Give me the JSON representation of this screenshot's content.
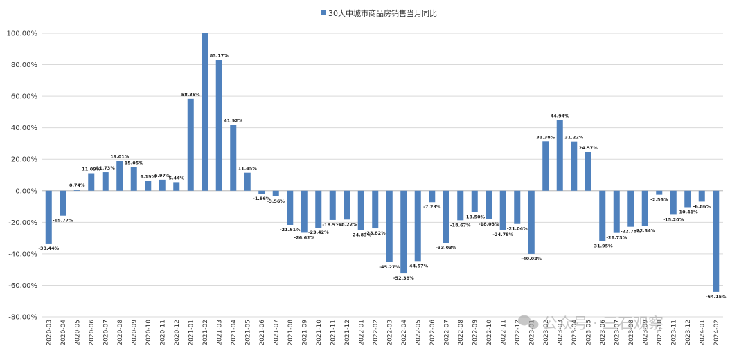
{
  "chart_data": {
    "type": "bar",
    "categories": [
      "2020-03",
      "2020-04",
      "2020-05",
      "2020-06",
      "2020-07",
      "2020-08",
      "2020-09",
      "2020-10",
      "2020-11",
      "2020-12",
      "2021-01",
      "2021-02",
      "2021-03",
      "2021-04",
      "2021-05",
      "2021-06",
      "2021-07",
      "2021-08",
      "2021-09",
      "2021-10",
      "2021-11",
      "2021-12",
      "2022-01",
      "2022-02",
      "2022-03",
      "2022-04",
      "2022-05",
      "2022-06",
      "2022-07",
      "2022-08",
      "2022-09",
      "2022-10",
      "2022-11",
      "2022-12",
      "2023-01",
      "2023-02",
      "2023-03",
      "2023-04",
      "2023-05",
      "2023-06",
      "2023-07",
      "2023-08",
      "2023-09",
      "2023-10",
      "2023-11",
      "2023-12",
      "2024-01",
      "2024-02"
    ],
    "series": [
      {
        "name": "30大中城市商品房销售当月同比",
        "color": "#4f81bd",
        "values": [
          -33.44,
          -15.77,
          0.74,
          11.09,
          11.73,
          19.01,
          15.05,
          6.19,
          6.97,
          5.44,
          58.36,
          100.0,
          83.17,
          41.92,
          11.45,
          -1.86,
          -3.56,
          -21.61,
          -26.62,
          -23.42,
          -18.51,
          -18.22,
          -24.83,
          -23.82,
          -45.27,
          -52.38,
          -44.57,
          -7.23,
          -33.03,
          -18.67,
          -13.5,
          -18.03,
          -24.78,
          -21.04,
          -40.02,
          31.38,
          44.94,
          31.22,
          24.57,
          -31.95,
          -26.73,
          -22.78,
          -22.34,
          -2.56,
          -15.2,
          -10.41,
          -6.86,
          -64.15
        ],
        "labels": [
          "-33.44%",
          "-15.77%",
          "0.74%",
          "11.09%",
          "11.73%",
          "19.01%",
          "15.05%",
          "6.19%",
          "6.97%",
          "5.44%",
          "58.36%",
          "",
          "83.17%",
          "41.92%",
          "11.45%",
          "-1.86%",
          "-3.56%",
          "-21.61%",
          "-26.62%",
          "-23.42%",
          "-18.51%",
          "-18.22%",
          "-24.83%",
          "-23.82%",
          "-45.27%",
          "-52.38%",
          "-44.57%",
          "-7.23%",
          "-33.03%",
          "-18.67%",
          "-13.50%",
          "-18.03%",
          "-24.78%",
          "-21.04%",
          "-40.02%",
          "31.38%",
          "44.94%",
          "31.22%",
          "24.57%",
          "-31.95%",
          "-26.73%",
          "-22.78%",
          "-22.34%",
          "-2.56%",
          "-15.20%",
          "-10.41%",
          "-6.86%",
          "-64.15%"
        ]
      }
    ],
    "yticks": [
      "100.00%",
      "80.00%",
      "60.00%",
      "40.00%",
      "20.00%",
      "0.00%",
      "-20.00%",
      "-40.00%",
      "-60.00%",
      "-80.00%"
    ],
    "ylim": [
      -80,
      100
    ],
    "legend_position": "top",
    "grid": true,
    "watermark": "公众号 · 三石观察"
  }
}
